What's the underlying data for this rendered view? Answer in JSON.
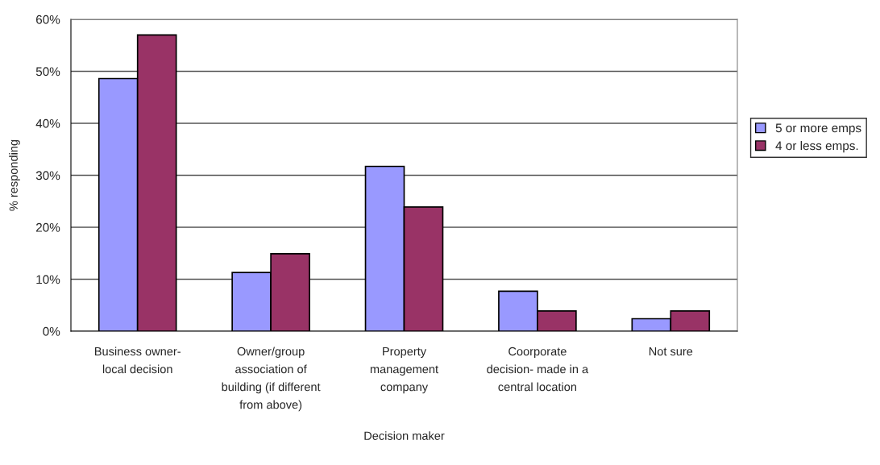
{
  "chart_data": {
    "type": "bar",
    "xlabel": "Decision maker",
    "ylabel": "% responding",
    "categories": [
      "Business owner-\nlocal decision",
      "Owner/group\nassociation of\nbuilding (if different\nfrom above)",
      "Property\nmanagement\ncompany",
      "Coorporate\ndecision- made in a\ncentral location",
      "Not sure"
    ],
    "series": [
      {
        "name": "5 or more emps",
        "color": "#9999ff",
        "values": [
          48.6,
          11.3,
          31.7,
          7.7,
          2.4
        ]
      },
      {
        "name": "4 or less emps.",
        "color": "#993366",
        "values": [
          57.0,
          14.9,
          23.9,
          3.9,
          3.9
        ]
      }
    ],
    "ylim": [
      0,
      60
    ],
    "yticks": [
      {
        "value": 0,
        "label": "0%"
      },
      {
        "value": 10,
        "label": "10%"
      },
      {
        "value": 20,
        "label": "20%"
      },
      {
        "value": 30,
        "label": "30%"
      },
      {
        "value": 40,
        "label": "40%"
      },
      {
        "value": 50,
        "label": "50%"
      },
      {
        "value": 60,
        "label": "60%"
      }
    ],
    "grid": "y",
    "legend": "right"
  }
}
